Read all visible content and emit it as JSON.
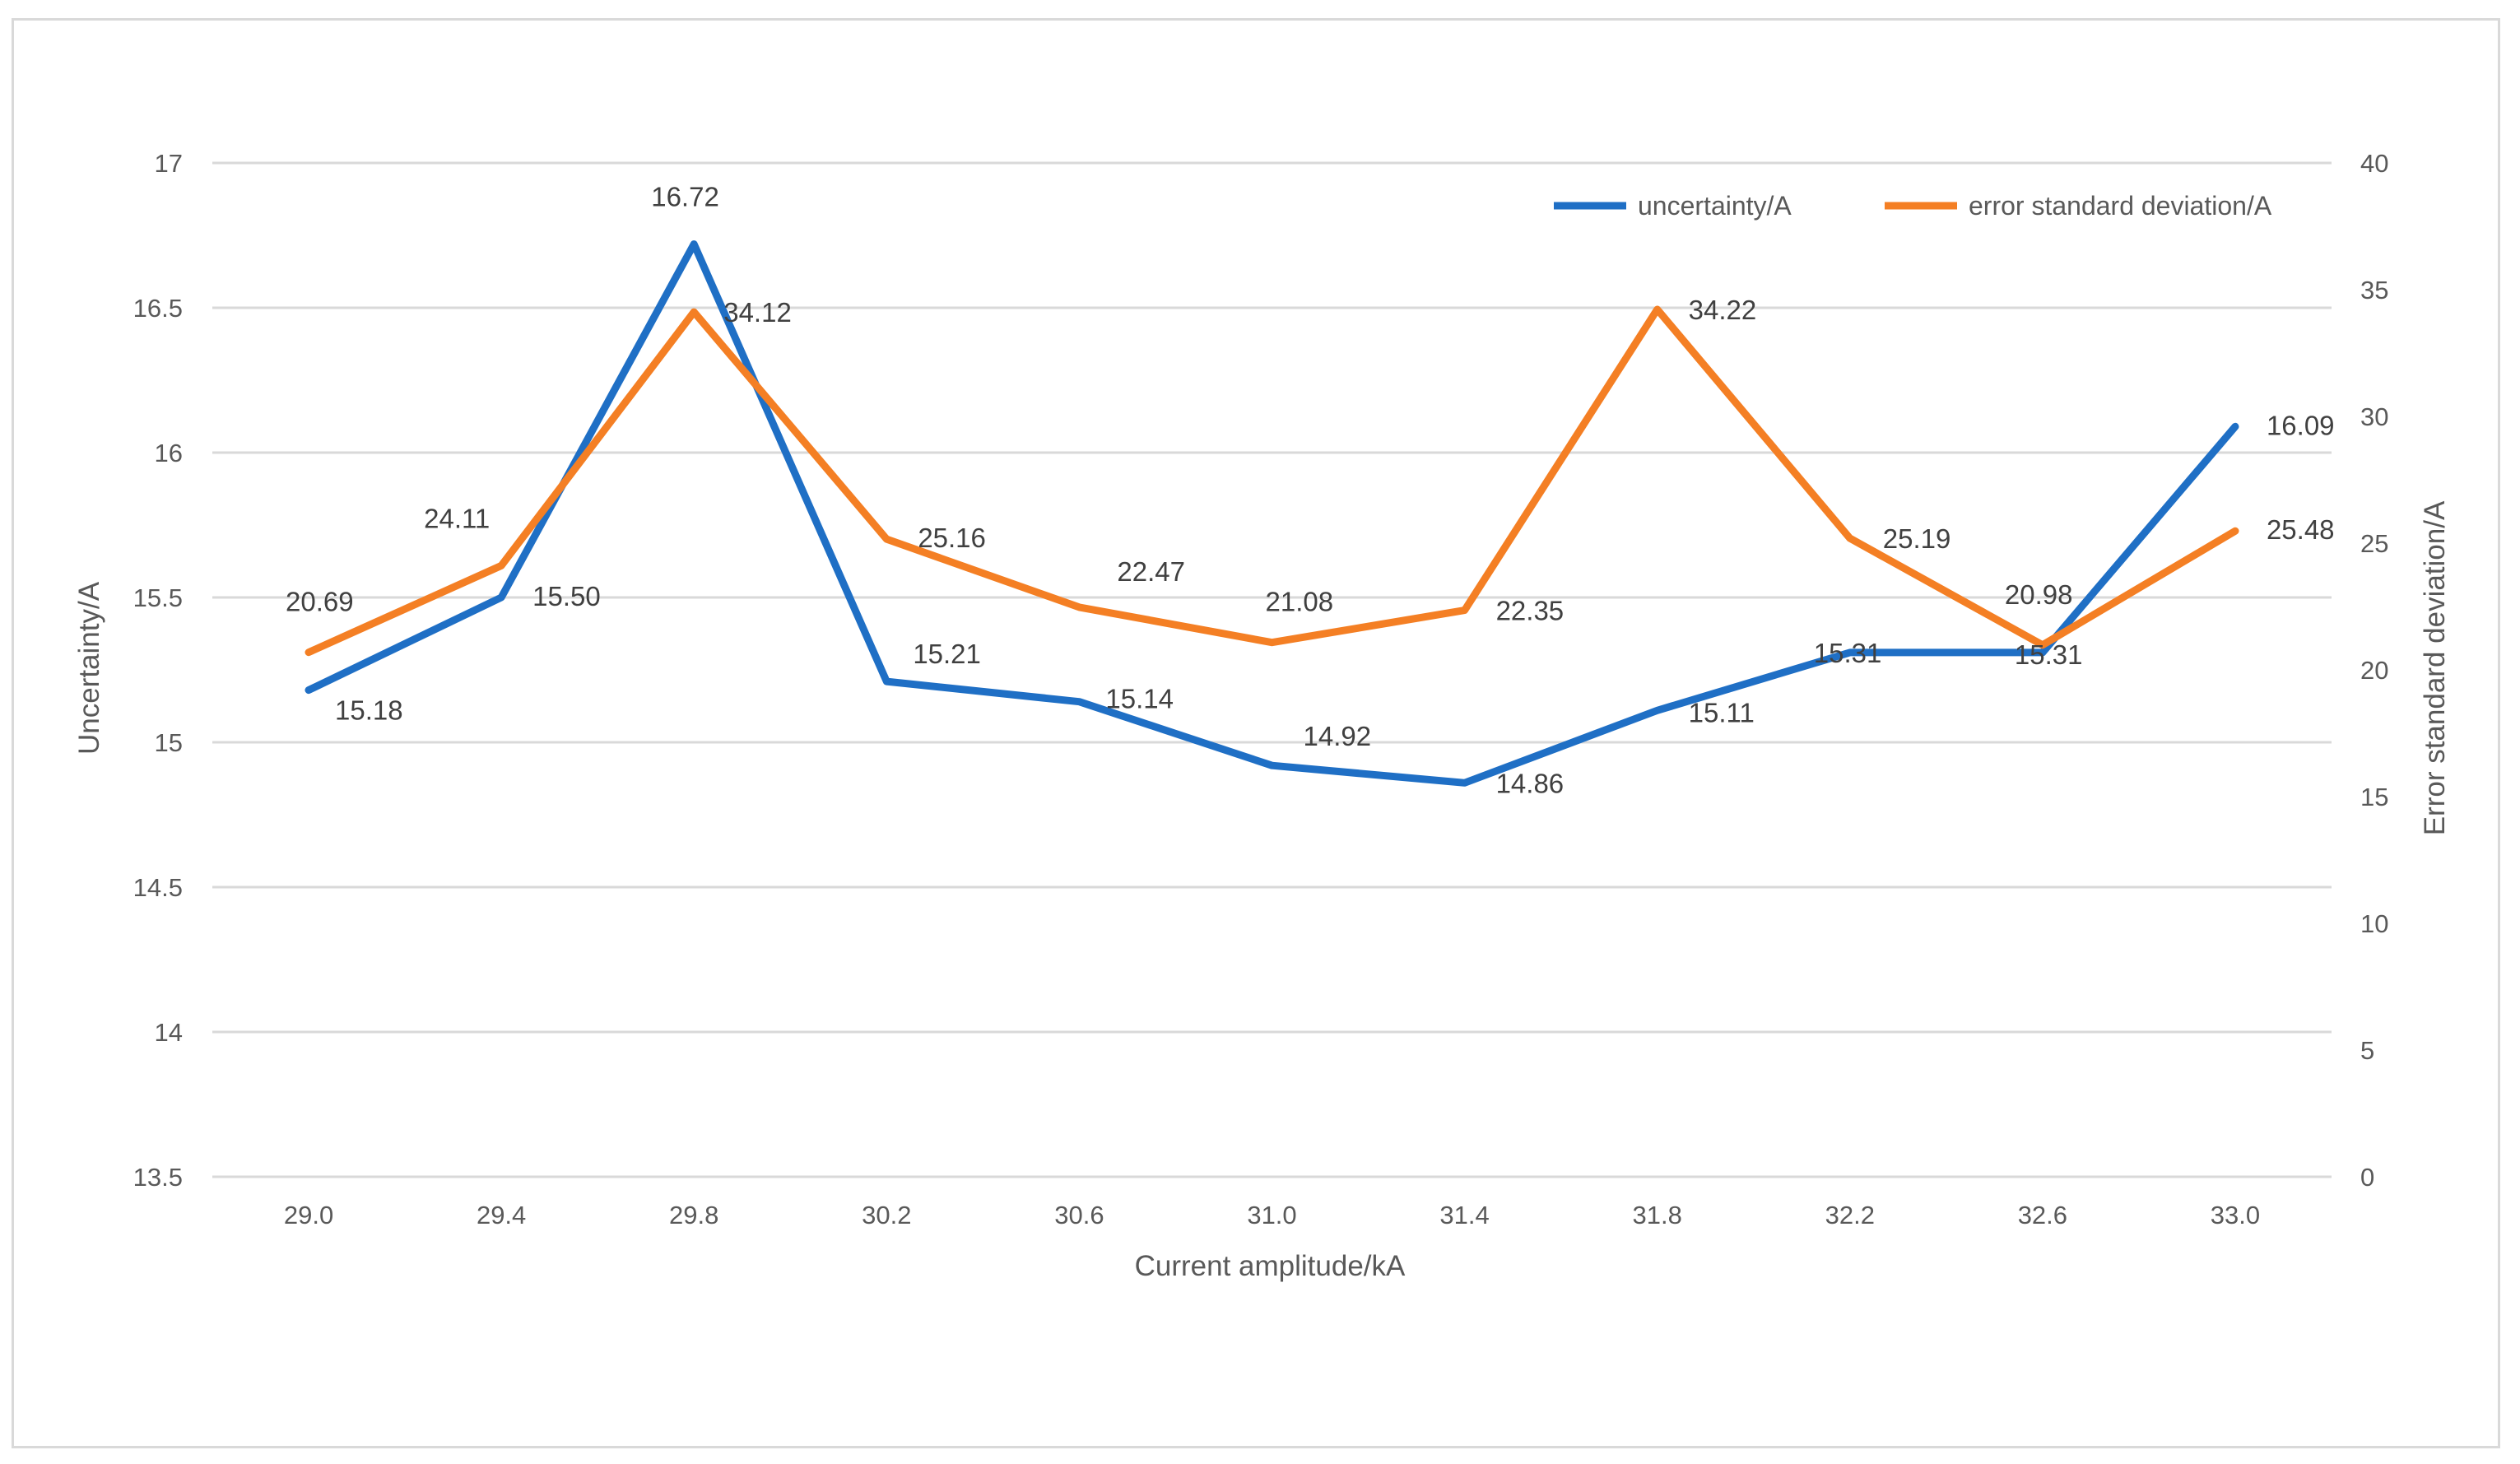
{
  "chart_data": {
    "type": "line",
    "title": "",
    "xlabel": "Current amplitude/kA",
    "ylabel": "Uncertainty/A",
    "y2label": "Error standard deviation/A",
    "categories": [
      "29.0",
      "29.4",
      "29.8",
      "30.2",
      "30.6",
      "31.0",
      "31.4",
      "31.8",
      "32.2",
      "32.6",
      "33.0"
    ],
    "ylim": [
      13.5,
      17
    ],
    "yticks": [
      "13.5",
      "14",
      "14.5",
      "15",
      "15.5",
      "16",
      "16.5",
      "17"
    ],
    "y2lim": [
      0,
      40
    ],
    "y2ticks": [
      "0",
      "5",
      "10",
      "15",
      "20",
      "25",
      "30",
      "35",
      "40"
    ],
    "grid": true,
    "legend_position": "top-right",
    "series": [
      {
        "name": "uncertainty/A",
        "axis": "left",
        "color": "#1f6fc5",
        "values": [
          15.18,
          15.5,
          16.72,
          15.21,
          15.14,
          14.92,
          14.86,
          15.11,
          15.31,
          15.31,
          16.09
        ],
        "labels": [
          "15.18",
          "15.50",
          "16.72",
          "15.21",
          "15.14",
          "14.92",
          "14.86",
          "15.11",
          "15.31",
          "15.31",
          "16.09"
        ]
      },
      {
        "name": "error standard deviation/A",
        "axis": "right",
        "color": "#f47f24",
        "values": [
          20.69,
          24.11,
          34.12,
          25.16,
          22.47,
          21.08,
          22.35,
          34.22,
          25.19,
          20.98,
          25.48
        ],
        "labels": [
          "20.69",
          "24.11",
          "34.12",
          "25.16",
          "22.47",
          "21.08",
          "22.35",
          "34.22",
          "25.19",
          "20.98",
          "25.48"
        ]
      }
    ]
  }
}
